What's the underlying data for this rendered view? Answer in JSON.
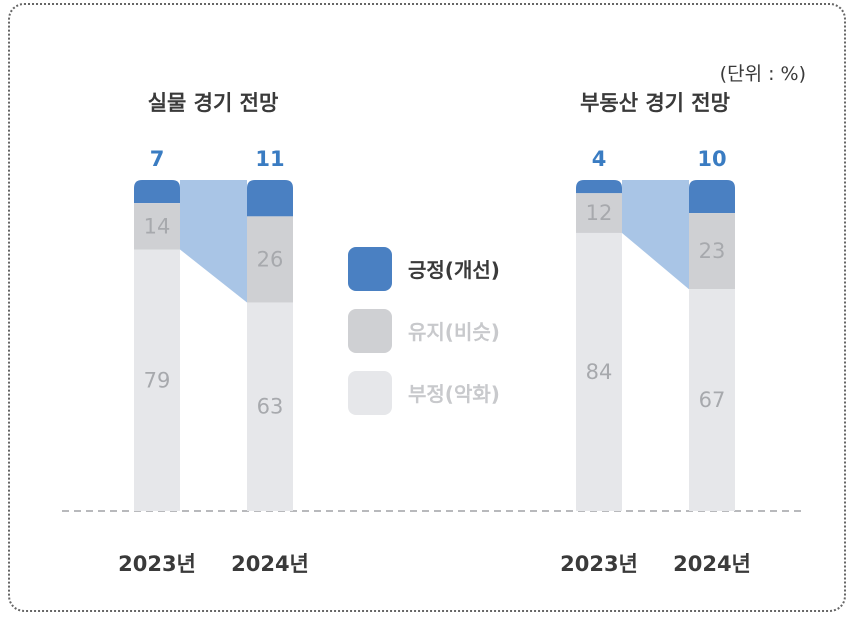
{
  "unit_label": "(단위 : %)",
  "colors": {
    "positive": "#4a80c2",
    "neutral": "#cfd0d3",
    "negative": "#e6e7ea",
    "connector": "#a9c5e6",
    "highlight_text": "#3a7cc2"
  },
  "legend": [
    {
      "label": "긍정(개선)",
      "key": "positive"
    },
    {
      "label": "유지(비슷)",
      "key": "neutral"
    },
    {
      "label": "부정(악화)",
      "key": "negative"
    }
  ],
  "chart_data": [
    {
      "type": "bar",
      "stacked": true,
      "title": "실물 경기 전망",
      "categories": [
        "2023년",
        "2024년"
      ],
      "series": [
        {
          "name": "긍정(개선)",
          "values": [
            7,
            11
          ]
        },
        {
          "name": "유지(비슷)",
          "values": [
            14,
            26
          ]
        },
        {
          "name": "부정(악화)",
          "values": [
            79,
            63
          ]
        }
      ],
      "ylim": [
        0,
        100
      ]
    },
    {
      "type": "bar",
      "stacked": true,
      "title": "부동산 경기 전망",
      "categories": [
        "2023년",
        "2024년"
      ],
      "series": [
        {
          "name": "긍정(개선)",
          "values": [
            4,
            10
          ]
        },
        {
          "name": "유지(비슷)",
          "values": [
            12,
            23
          ]
        },
        {
          "name": "부정(악화)",
          "values": [
            84,
            67
          ]
        }
      ],
      "ylim": [
        0,
        100
      ]
    }
  ]
}
